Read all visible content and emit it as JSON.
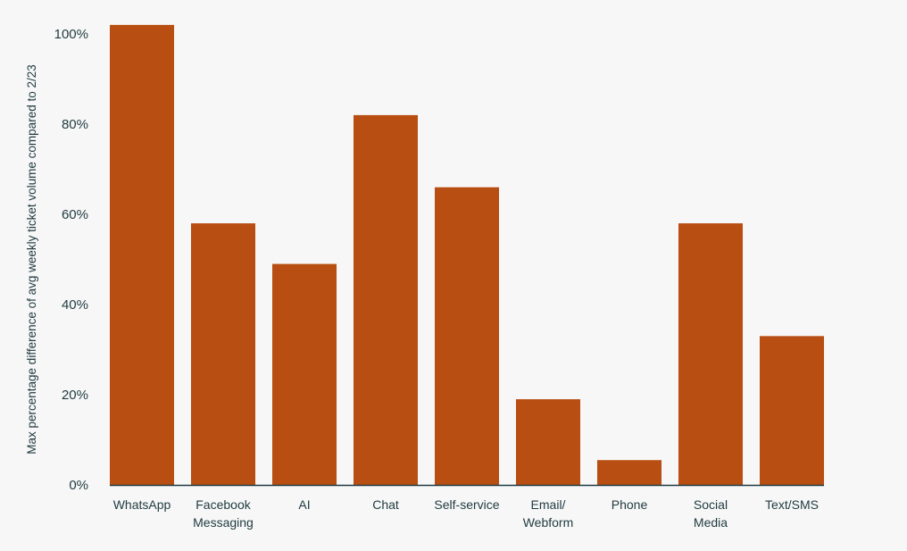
{
  "chart_data": {
    "type": "bar",
    "title": "",
    "xlabel": "",
    "ylabel": "Max percentage difference of avg weekly ticket volume compared to 2/23",
    "categories": [
      [
        "WhatsApp"
      ],
      [
        "Facebook",
        "Messaging"
      ],
      [
        "AI"
      ],
      [
        "Chat"
      ],
      [
        "Self-service"
      ],
      [
        "Email/",
        "Webform"
      ],
      [
        "Phone"
      ],
      [
        "Social",
        "Media"
      ],
      [
        "Text/SMS"
      ]
    ],
    "values": [
      102,
      58,
      49,
      82,
      66,
      19,
      5.5,
      58,
      33
    ],
    "ylim": [
      0,
      100
    ],
    "yticks": [
      0,
      20,
      40,
      60,
      80,
      100
    ],
    "ytick_labels": [
      "0%",
      "20%",
      "40%",
      "60%",
      "80%",
      "100%"
    ],
    "grid": false,
    "bar_color": "#b84e12",
    "axis_color": "#1f3a40"
  }
}
